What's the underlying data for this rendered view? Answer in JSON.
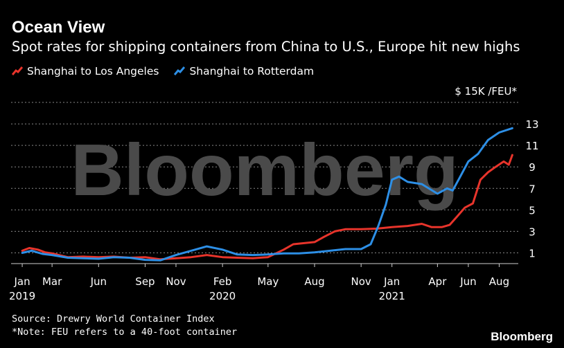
{
  "header": {
    "title": "Ocean View",
    "subtitle": "Spot rates for shipping containers from China to U.S., Europe hit new highs"
  },
  "legend": {
    "items": [
      {
        "label": "Shanghai to Los Angeles",
        "color": "#e8342b"
      },
      {
        "label": "Shanghai to Rotterdam",
        "color": "#2d8fe6"
      }
    ]
  },
  "watermark": "Bloomberg",
  "footer": {
    "source": "Source: Drewry World Container Index",
    "note": "*Note: FEU refers to a 40-foot container",
    "brand": "Bloomberg"
  },
  "chart_data": {
    "type": "line",
    "unit_label": "$ 15K /FEU*",
    "x_type": "date",
    "x_ticks": [
      {
        "date": "2019-01-01",
        "label": "Jan",
        "year": "2019"
      },
      {
        "date": "2019-03-01",
        "label": "Mar",
        "year": ""
      },
      {
        "date": "2019-06-01",
        "label": "Jun",
        "year": ""
      },
      {
        "date": "2019-09-01",
        "label": "Sep",
        "year": ""
      },
      {
        "date": "2019-11-01",
        "label": "Nov",
        "year": ""
      },
      {
        "date": "2020-02-01",
        "label": "Feb",
        "year": "2020"
      },
      {
        "date": "2020-05-01",
        "label": "May",
        "year": ""
      },
      {
        "date": "2020-08-01",
        "label": "Aug",
        "year": ""
      },
      {
        "date": "2020-11-01",
        "label": "Nov",
        "year": ""
      },
      {
        "date": "2021-01-01",
        "label": "Jan",
        "year": "2021"
      },
      {
        "date": "2021-04-01",
        "label": "Apr",
        "year": ""
      },
      {
        "date": "2021-06-01",
        "label": "Jun",
        "year": ""
      },
      {
        "date": "2021-08-01",
        "label": "Aug",
        "year": ""
      }
    ],
    "y_ticks": [
      1,
      3,
      5,
      7,
      9,
      11,
      13
    ],
    "ylim": [
      0,
      15
    ],
    "grid": true,
    "legend_position": "top-left",
    "series": [
      {
        "name": "Shanghai to Los Angeles",
        "color": "#e8342b",
        "points": [
          [
            "2019-01-01",
            1.2
          ],
          [
            "2019-01-15",
            1.45
          ],
          [
            "2019-02-01",
            1.3
          ],
          [
            "2019-02-15",
            1.05
          ],
          [
            "2019-03-01",
            0.95
          ],
          [
            "2019-04-01",
            0.6
          ],
          [
            "2019-05-01",
            0.65
          ],
          [
            "2019-06-01",
            0.6
          ],
          [
            "2019-07-01",
            0.65
          ],
          [
            "2019-08-01",
            0.55
          ],
          [
            "2019-09-01",
            0.6
          ],
          [
            "2019-10-01",
            0.4
          ],
          [
            "2019-11-01",
            0.5
          ],
          [
            "2019-12-01",
            0.6
          ],
          [
            "2020-01-01",
            0.8
          ],
          [
            "2020-02-01",
            0.6
          ],
          [
            "2020-03-01",
            0.55
          ],
          [
            "2020-04-01",
            0.5
          ],
          [
            "2020-05-01",
            0.6
          ],
          [
            "2020-06-01",
            1.3
          ],
          [
            "2020-06-20",
            1.8
          ],
          [
            "2020-07-10",
            1.9
          ],
          [
            "2020-08-01",
            2.0
          ],
          [
            "2020-08-20",
            2.5
          ],
          [
            "2020-09-10",
            3.0
          ],
          [
            "2020-10-01",
            3.2
          ],
          [
            "2020-11-01",
            3.2
          ],
          [
            "2020-12-01",
            3.25
          ],
          [
            "2021-01-01",
            3.4
          ],
          [
            "2021-02-01",
            3.5
          ],
          [
            "2021-03-01",
            3.7
          ],
          [
            "2021-03-20",
            3.4
          ],
          [
            "2021-04-10",
            3.4
          ],
          [
            "2021-04-25",
            3.6
          ],
          [
            "2021-05-10",
            4.4
          ],
          [
            "2021-05-25",
            5.2
          ],
          [
            "2021-06-10",
            5.6
          ],
          [
            "2021-06-25",
            7.8
          ],
          [
            "2021-07-10",
            8.5
          ],
          [
            "2021-07-25",
            9.0
          ],
          [
            "2021-08-10",
            9.5
          ],
          [
            "2021-08-20",
            9.2
          ],
          [
            "2021-08-27",
            10.1
          ]
        ]
      },
      {
        "name": "Shanghai to Rotterdam",
        "color": "#2d8fe6",
        "points": [
          [
            "2019-01-01",
            1.0
          ],
          [
            "2019-01-20",
            1.2
          ],
          [
            "2019-02-10",
            0.9
          ],
          [
            "2019-03-01",
            0.8
          ],
          [
            "2019-04-01",
            0.55
          ],
          [
            "2019-05-01",
            0.5
          ],
          [
            "2019-06-01",
            0.45
          ],
          [
            "2019-07-01",
            0.6
          ],
          [
            "2019-08-01",
            0.55
          ],
          [
            "2019-09-01",
            0.35
          ],
          [
            "2019-10-01",
            0.3
          ],
          [
            "2019-11-01",
            0.8
          ],
          [
            "2019-12-01",
            1.2
          ],
          [
            "2020-01-01",
            1.6
          ],
          [
            "2020-02-01",
            1.3
          ],
          [
            "2020-03-01",
            0.85
          ],
          [
            "2020-04-01",
            0.8
          ],
          [
            "2020-05-01",
            0.85
          ],
          [
            "2020-06-01",
            0.95
          ],
          [
            "2020-07-01",
            0.95
          ],
          [
            "2020-08-01",
            1.05
          ],
          [
            "2020-09-01",
            1.2
          ],
          [
            "2020-10-01",
            1.35
          ],
          [
            "2020-11-01",
            1.35
          ],
          [
            "2020-11-20",
            1.8
          ],
          [
            "2020-12-05",
            3.5
          ],
          [
            "2020-12-20",
            5.5
          ],
          [
            "2021-01-01",
            7.8
          ],
          [
            "2021-01-15",
            8.1
          ],
          [
            "2021-02-01",
            7.6
          ],
          [
            "2021-03-01",
            7.4
          ],
          [
            "2021-04-01",
            6.5
          ],
          [
            "2021-04-20",
            7.0
          ],
          [
            "2021-05-01",
            6.8
          ],
          [
            "2021-05-15",
            8.0
          ],
          [
            "2021-06-01",
            9.5
          ],
          [
            "2021-06-20",
            10.2
          ],
          [
            "2021-07-10",
            11.5
          ],
          [
            "2021-08-01",
            12.2
          ],
          [
            "2021-08-27",
            12.6
          ]
        ]
      }
    ]
  }
}
